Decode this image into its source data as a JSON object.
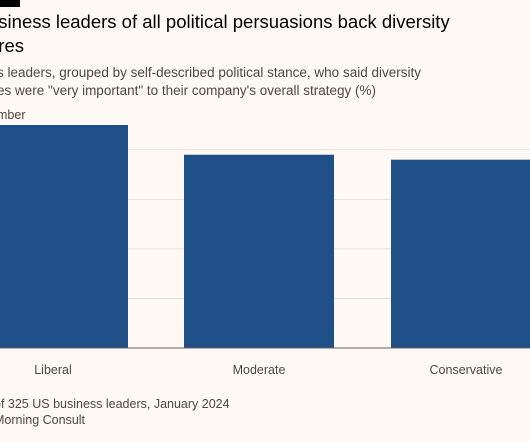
{
  "header": {
    "title": "usiness leaders of all political persuasions back diversity\nures",
    "subtitle": "s leaders, grouped by self-described political stance, who said diversity\nes were \"very important\" to their company's overall strategy (%)",
    "unit_label": "mber"
  },
  "footer": {
    "note": "of 325 US business leaders, January 2024",
    "source": "Morning Consult"
  },
  "colors": {
    "bar": "#1e5087",
    "grid": "#e6e1dc",
    "axis": "#66605c",
    "background": "#fff9f5"
  },
  "chart_data": {
    "type": "bar",
    "categories": [
      "Liberal",
      "Moderate",
      "Conservative"
    ],
    "values": [
      45,
      39,
      38
    ],
    "ylim": [
      0,
      45
    ],
    "y_gridlines": [
      0,
      10,
      20,
      30,
      40
    ],
    "ytick_labels_visible": false,
    "grid": true,
    "xlabel": "",
    "ylabel": ""
  }
}
